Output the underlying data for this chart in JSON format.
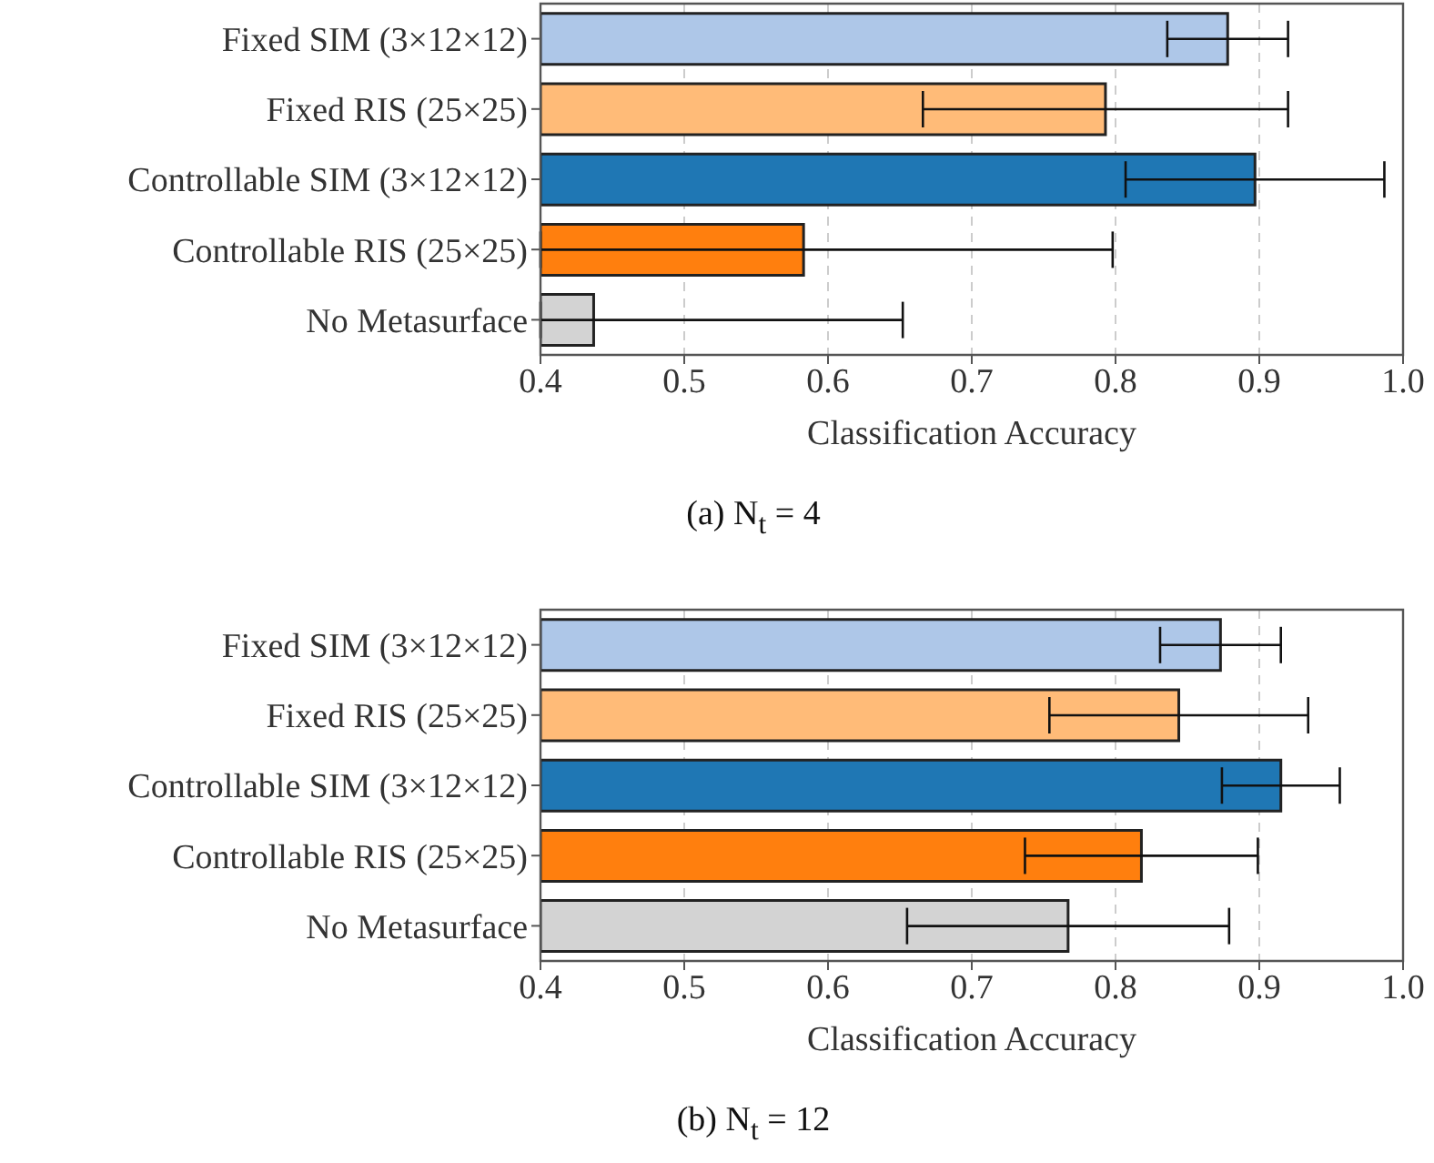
{
  "chart_data": [
    {
      "type": "bar",
      "orientation": "horizontal",
      "title": "(a) N$_{t}$ = 4",
      "xlabel": "Classification Accuracy",
      "categories": [
        "Fixed SIM (3×12×12)",
        "Fixed RIS (25×25)",
        "Controllable SIM (3×12×12)",
        "Controllable RIS (25×25)",
        "No Metasurface"
      ],
      "values": [
        0.878,
        0.793,
        0.897,
        0.583,
        0.437
      ],
      "errors": [
        0.042,
        0.127,
        0.09,
        [
          0.4,
          0.798
        ],
        [
          0.4,
          0.652
        ]
      ],
      "colors": [
        "#aec7e8",
        "#ffbb78",
        "#1f77b4",
        "#ff7f0e",
        "#d3d3d3"
      ],
      "xlim": [
        0.4,
        1.0
      ],
      "xticks": [
        0.4,
        0.5,
        0.6,
        0.7,
        0.8,
        0.9,
        {
          "value": 1.0,
          "label": "1.0"
        }
      ],
      "grid": "x"
    },
    {
      "type": "bar",
      "orientation": "horizontal",
      "title": "(b) N$_{t}$ = 12",
      "xlabel": "Classification Accuracy",
      "categories": [
        "Fixed SIM (3×12×12)",
        "Fixed RIS (25×25)",
        "Controllable SIM (3×12×12)",
        "Controllable RIS (25×25)",
        "No Metasurface"
      ],
      "values": [
        0.873,
        0.844,
        0.915,
        0.818,
        0.767
      ],
      "errors": [
        0.042,
        0.09,
        0.041,
        0.081,
        0.112
      ],
      "colors": [
        "#aec7e8",
        "#ffbb78",
        "#1f77b4",
        "#ff7f0e",
        "#d3d3d3"
      ],
      "xlim": [
        0.4,
        1.0
      ],
      "xticks": [
        0.4,
        0.5,
        0.6,
        0.7,
        0.8,
        0.9,
        {
          "value": 1.0,
          "label": "1.0"
        }
      ],
      "grid": "x"
    }
  ]
}
